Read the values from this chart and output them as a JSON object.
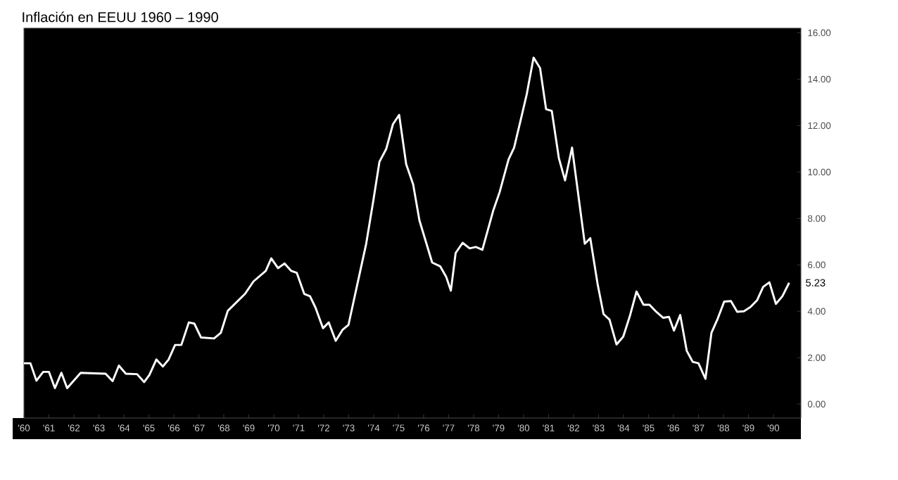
{
  "chart_data": {
    "type": "line",
    "title": "Inflación en EEUU 1960 – 1990",
    "x": [
      1960.0,
      1960.26,
      1960.5,
      1960.77,
      1961.0,
      1961.24,
      1961.5,
      1961.73,
      1962.27,
      1963.27,
      1963.55,
      1963.8,
      1964.08,
      1964.53,
      1964.81,
      1965.02,
      1965.3,
      1965.56,
      1965.79,
      1966.05,
      1966.3,
      1966.6,
      1966.82,
      1967.09,
      1967.61,
      1967.88,
      1968.16,
      1968.85,
      1969.19,
      1969.68,
      1969.9,
      1970.17,
      1970.43,
      1970.7,
      1970.92,
      1971.22,
      1971.45,
      1971.67,
      1971.97,
      1972.2,
      1972.48,
      1972.76,
      1972.99,
      1973.33,
      1973.7,
      1973.98,
      1974.23,
      1974.5,
      1974.77,
      1975.02,
      1975.3,
      1975.58,
      1975.83,
      1976.34,
      1976.66,
      1976.9,
      1977.09,
      1977.28,
      1977.56,
      1977.84,
      1978.09,
      1978.35,
      1978.78,
      1979.04,
      1979.4,
      1979.62,
      1979.91,
      1980.13,
      1980.4,
      1980.66,
      1980.9,
      1981.13,
      1981.41,
      1981.66,
      1981.94,
      1982.45,
      1982.67,
      1982.96,
      1983.2,
      1983.44,
      1983.72,
      1983.99,
      1984.25,
      1984.52,
      1984.8,
      1985.04,
      1985.31,
      1985.59,
      1985.82,
      1986.02,
      1986.27,
      1986.53,
      1986.77,
      1987.0,
      1987.28,
      1987.52,
      1987.77,
      1988.03,
      1988.3,
      1988.55,
      1988.82,
      1989.08,
      1989.35,
      1989.59,
      1989.84,
      1990.1,
      1990.36,
      1990.63
    ],
    "series": [
      {
        "color": "#ffffff",
        "values": [
          1.76,
          1.76,
          1.01,
          1.39,
          1.39,
          0.69,
          1.35,
          0.69,
          1.35,
          1.31,
          0.99,
          1.66,
          1.31,
          1.29,
          0.95,
          1.25,
          1.92,
          1.62,
          1.92,
          2.55,
          2.55,
          3.52,
          3.47,
          2.87,
          2.83,
          3.07,
          4.02,
          4.75,
          5.29,
          5.74,
          6.28,
          5.86,
          6.06,
          5.74,
          5.66,
          4.75,
          4.65,
          4.16,
          3.27,
          3.52,
          2.73,
          3.21,
          3.41,
          5.09,
          6.91,
          8.73,
          10.44,
          10.99,
          12.06,
          12.46,
          10.34,
          9.47,
          7.92,
          6.1,
          5.94,
          5.49,
          4.89,
          6.51,
          6.95,
          6.71,
          6.77,
          6.65,
          8.32,
          9.13,
          10.55,
          11.05,
          12.36,
          13.37,
          14.93,
          14.48,
          12.71,
          12.63,
          10.61,
          9.64,
          11.05,
          6.91,
          7.15,
          5.19,
          3.88,
          3.64,
          2.57,
          2.91,
          3.78,
          4.85,
          4.28,
          4.28,
          3.98,
          3.72,
          3.76,
          3.17,
          3.84,
          2.3,
          1.82,
          1.76,
          1.09,
          3.07,
          3.68,
          4.42,
          4.44,
          3.98,
          4.0,
          4.18,
          4.48,
          5.05,
          5.25,
          4.32,
          4.65,
          5.23
        ]
      }
    ],
    "xlim": [
      1960,
      1991.1
    ],
    "xticks": [
      {
        "value": 1960,
        "label": "'60"
      },
      {
        "value": 1961,
        "label": "'61"
      },
      {
        "value": 1962,
        "label": "'62"
      },
      {
        "value": 1963,
        "label": "'63"
      },
      {
        "value": 1964,
        "label": "'64"
      },
      {
        "value": 1965,
        "label": "'65"
      },
      {
        "value": 1966,
        "label": "'66"
      },
      {
        "value": 1967,
        "label": "'67"
      },
      {
        "value": 1968,
        "label": "'68"
      },
      {
        "value": 1969,
        "label": "'69"
      },
      {
        "value": 1970,
        "label": "'70"
      },
      {
        "value": 1971,
        "label": "'71"
      },
      {
        "value": 1972,
        "label": "'72"
      },
      {
        "value": 1973,
        "label": "'73"
      },
      {
        "value": 1974,
        "label": "'74"
      },
      {
        "value": 1975,
        "label": "'75"
      },
      {
        "value": 1976,
        "label": "'76"
      },
      {
        "value": 1977,
        "label": "'77"
      },
      {
        "value": 1978,
        "label": "'78"
      },
      {
        "value": 1979,
        "label": "'79"
      },
      {
        "value": 1980,
        "label": "'80"
      },
      {
        "value": 1981,
        "label": "'81"
      },
      {
        "value": 1982,
        "label": "'82"
      },
      {
        "value": 1983,
        "label": "'83"
      },
      {
        "value": 1984,
        "label": "'84"
      },
      {
        "value": 1985,
        "label": "'85"
      },
      {
        "value": 1986,
        "label": "'86"
      },
      {
        "value": 1987,
        "label": "'87"
      },
      {
        "value": 1988,
        "label": "'88"
      },
      {
        "value": 1989,
        "label": "'89"
      },
      {
        "value": 1990,
        "label": "'90"
      }
    ],
    "ylim": [
      -0.6,
      16.2
    ],
    "yticks": [
      {
        "value": 0,
        "label": "0.00"
      },
      {
        "value": 2,
        "label": "2.00"
      },
      {
        "value": 4,
        "label": "4.00"
      },
      {
        "value": 6,
        "label": "6.00"
      },
      {
        "value": 8,
        "label": "8.00"
      },
      {
        "value": 10,
        "label": "10.00"
      },
      {
        "value": 12,
        "label": "12.00"
      },
      {
        "value": 14,
        "label": "14.00"
      },
      {
        "value": 16,
        "label": "16.00"
      }
    ],
    "annotations": [
      {
        "text": "5.23",
        "x": 1990.63,
        "y": 5.23
      }
    ],
    "grid": false,
    "marker": "none",
    "line_style": "solid"
  }
}
